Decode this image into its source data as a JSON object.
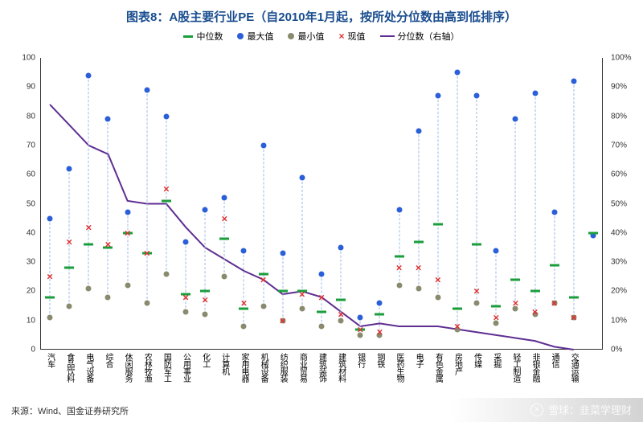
{
  "title": "图表8：A股主要行业PE（自2010年1月起，按所处分位数由高到低排序）",
  "title_fontsize": 15,
  "title_color": "#1a4d8f",
  "legend": {
    "median": "中位数",
    "max": "最大值",
    "min": "最小值",
    "current": "现值",
    "percentile": "分位数（右轴）"
  },
  "colors": {
    "median": "#1a9e3b",
    "max": "#2b5fd9",
    "min": "#8a8a6e",
    "current": "#e03030",
    "line": "#5e2e91",
    "dash": "#9bb8e8",
    "axis": "#333333",
    "bg": "#ffffff"
  },
  "y_left": {
    "min": 0,
    "max": 100,
    "step": 10
  },
  "y_right": {
    "min": 0,
    "max": 100,
    "step": 10,
    "suffix": "%"
  },
  "categories": [
    {
      "label": "汽车",
      "max": 45,
      "min": 11,
      "median": 18,
      "current": 25,
      "pct": 84
    },
    {
      "label": "食品饮料",
      "max": 62,
      "min": 15,
      "median": 28,
      "current": 37,
      "pct": 77
    },
    {
      "label": "电气设备",
      "max": 94,
      "min": 21,
      "median": 36,
      "current": 42,
      "pct": 70
    },
    {
      "label": "综合",
      "max": 79,
      "min": 18,
      "median": 35,
      "current": 36,
      "pct": 67
    },
    {
      "label": "休闲服务",
      "max": 47,
      "min": 22,
      "median": 40,
      "current": 40,
      "pct": 51
    },
    {
      "label": "农林牧渔",
      "max": 89,
      "min": 16,
      "median": 33,
      "current": 33,
      "pct": 50
    },
    {
      "label": "国防军工",
      "max": 80,
      "min": 26,
      "median": 51,
      "current": 55,
      "pct": 50
    },
    {
      "label": "公用事业",
      "max": 37,
      "min": 13,
      "median": 19,
      "current": 18,
      "pct": 42
    },
    {
      "label": "化工",
      "max": 48,
      "min": 12,
      "median": 20,
      "current": 17,
      "pct": 35
    },
    {
      "label": "计算机",
      "max": 52,
      "min": 25,
      "median": 38,
      "current": 45,
      "pct": 31
    },
    {
      "label": "家用电器",
      "max": 34,
      "min": 8,
      "median": 14,
      "current": 16,
      "pct": 27
    },
    {
      "label": "机械设备",
      "max": 70,
      "min": 15,
      "median": 26,
      "current": 24,
      "pct": 24
    },
    {
      "label": "纺织服装",
      "max": 33,
      "min": 10,
      "median": 20,
      "current": 10,
      "pct": 19
    },
    {
      "label": "商业贸易",
      "max": 59,
      "min": 14,
      "median": 20,
      "current": 19,
      "pct": 20
    },
    {
      "label": "建筑装饰",
      "max": 26,
      "min": 8,
      "median": 13,
      "current": 18,
      "pct": 18
    },
    {
      "label": "建筑材料",
      "max": 35,
      "min": 10,
      "median": 17,
      "current": 12,
      "pct": 13
    },
    {
      "label": "银行",
      "max": 11,
      "min": 5,
      "median": 7,
      "current": 7,
      "pct": 8
    },
    {
      "label": "钢铁",
      "max": 16,
      "min": 5,
      "median": 12,
      "current": 6,
      "pct": 9
    },
    {
      "label": "医药生物",
      "max": 48,
      "min": 22,
      "median": 32,
      "current": 28,
      "pct": 8
    },
    {
      "label": "电子",
      "max": 75,
      "min": 21,
      "median": 37,
      "current": 28,
      "pct": 8
    },
    {
      "label": "有色金属",
      "max": 87,
      "min": 18,
      "median": 43,
      "current": 24,
      "pct": 8
    },
    {
      "label": "房地产",
      "max": 95,
      "min": 7,
      "median": 14,
      "current": 8,
      "pct": 7
    },
    {
      "label": "传媒",
      "max": 87,
      "min": 16,
      "median": 36,
      "current": 20,
      "pct": 6
    },
    {
      "label": "采掘",
      "max": 34,
      "min": 9,
      "median": 15,
      "current": 11,
      "pct": 5
    },
    {
      "label": "轻工制造",
      "max": 79,
      "min": 14,
      "median": 24,
      "current": 16,
      "pct": 4
    },
    {
      "label": "非银金融",
      "max": 88,
      "min": 12,
      "median": 20,
      "current": 13,
      "pct": 3
    },
    {
      "label": "通信",
      "max": 47,
      "min": 16,
      "median": 29,
      "current": 16,
      "pct": 1
    },
    {
      "label": "交通运输",
      "max": 92,
      "min": 11,
      "median": 18,
      "current": 11,
      "pct": 0
    },
    {
      "label": "",
      "max": 39,
      "min": null,
      "median": 40,
      "current": null,
      "pct": null
    }
  ],
  "source": "来源：Wind、国金证券研究所",
  "watermark": "雪球：韭菜学理财"
}
